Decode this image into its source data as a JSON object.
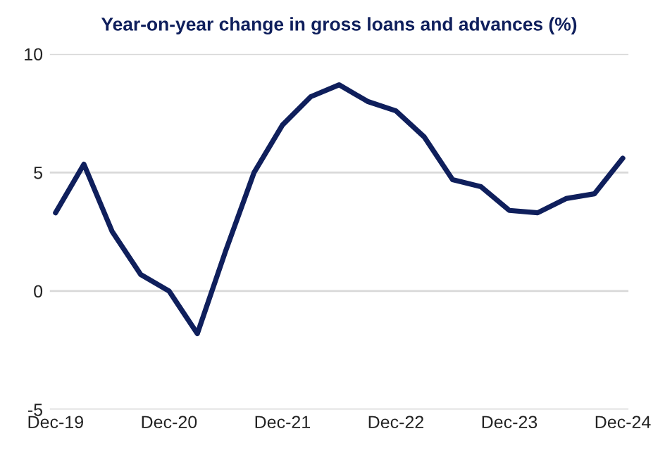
{
  "chart_data": {
    "type": "line",
    "title": "Year-on-year change in gross loans and advances (%)",
    "categories": [
      "Dec-19",
      null,
      null,
      null,
      "Dec-20",
      null,
      null,
      null,
      "Dec-21",
      null,
      null,
      null,
      "Dec-22",
      null,
      null,
      null,
      "Dec-23",
      null,
      null,
      null,
      "Dec-24"
    ],
    "series": [
      {
        "color": "#0f1f5c",
        "values": [
          3.3,
          5.35,
          2.5,
          0.7,
          0.0,
          -1.8,
          1.7,
          5.0,
          7.0,
          8.2,
          8.7,
          8.0,
          7.6,
          6.5,
          4.7,
          4.4,
          3.4,
          3.3,
          3.9,
          4.1,
          5.6
        ]
      }
    ],
    "ylim": [
      -5,
      10
    ],
    "yticks": [
      -5,
      0,
      5,
      10
    ],
    "grid": "y",
    "marker": "none",
    "line_style": "solid"
  }
}
